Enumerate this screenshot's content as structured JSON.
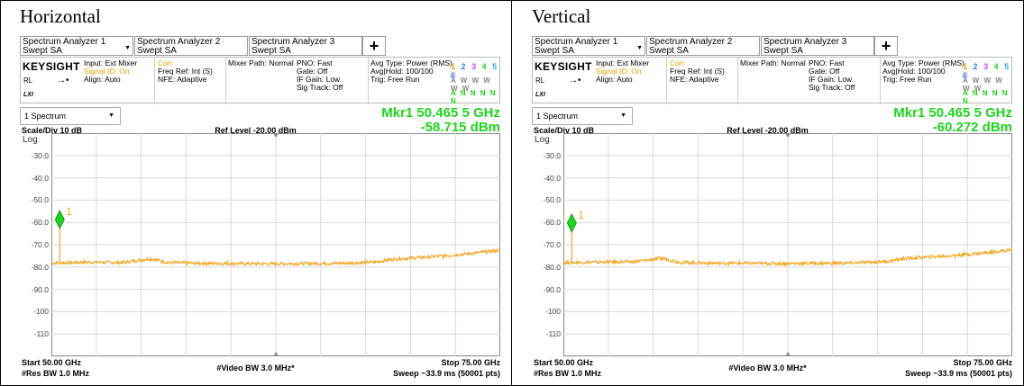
{
  "panels": [
    {
      "title": "Horizontal",
      "tabs": [
        {
          "line1": "Spectrum Analyzer 1",
          "line2": "Swept SA"
        },
        {
          "line1": "Spectrum Analyzer 2",
          "line2": "Swept SA"
        },
        {
          "line1": "Spectrum Analyzer 3",
          "line2": "Swept SA"
        }
      ],
      "add_tab": "+",
      "logo": "KEYSIGHT",
      "rl": "RL",
      "lxi": "LXI",
      "input": {
        "l1": "Input: Ext Mixer",
        "l2": "Signal ID: On",
        "l3": "Align: Auto"
      },
      "corr": {
        "l1": "Corr",
        "l2": "Freq Ref: Int (S)",
        "l3": "NFE: Adaptive"
      },
      "mixer": "Mixer Path: Normal",
      "pno": {
        "l1": "PNO: Fast",
        "l2": "Gate: Off",
        "l3": "IF Gain: Low",
        "l4": "Sig Track: Off"
      },
      "avg": {
        "l1": "Avg Type: Power (RMS)",
        "l2": "Avg|Hold: 100/100",
        "l3": "Trig: Free Run"
      },
      "trace_numbers": "1 2 3 4 5 6",
      "trace_types": "A W W W W W",
      "trace_dets": "A N N N N N",
      "spectrum_select": "1 Spectrum",
      "marker_freq": "Mkr1  50.465 5 GHz",
      "marker_amp": "-58.715 dBm",
      "scale_div": "Scale/Div 10 dB",
      "log_label": "Log",
      "ref_level": "Ref Level -20.00 dBm",
      "start": "Start 50.00 GHz",
      "res_bw": "#Res BW 1.0 MHz",
      "video_bw": "#Video BW 3.0 MHz*",
      "stop": "Stop 75.00 GHz",
      "sweep": "Sweep ~33.9 ms (50001 pts)",
      "marker_label": "1"
    },
    {
      "title": "Vertical",
      "tabs": [
        {
          "line1": "Spectrum Analyzer 1",
          "line2": "Swept SA"
        },
        {
          "line1": "Spectrum Analyzer 2",
          "line2": "Swept SA"
        },
        {
          "line1": "Spectrum Analyzer 3",
          "line2": "Swept SA"
        }
      ],
      "add_tab": "+",
      "logo": "KEYSIGHT",
      "rl": "RL",
      "lxi": "LXI",
      "input": {
        "l1": "Input: Ext Mixer",
        "l2": "Signal ID: On",
        "l3": "Align: Auto"
      },
      "corr": {
        "l1": "Corr",
        "l2": "Freq Ref: Int (S)",
        "l3": "NFE: Adaptive"
      },
      "mixer": "Mixer Path: Normal",
      "pno": {
        "l1": "PNO: Fast",
        "l2": "Gate: Off",
        "l3": "IF Gain: Low",
        "l4": "Sig Track: Off"
      },
      "avg": {
        "l1": "Avg Type: Power (RMS)",
        "l2": "Avg|Hold: 100/100",
        "l3": "Trig: Free Run"
      },
      "trace_numbers": "1 2 3 4 5 6",
      "trace_types": "A W W W W W",
      "trace_dets": "A N N N N N",
      "spectrum_select": "1 Spectrum",
      "marker_freq": "Mkr1  50.465 5 GHz",
      "marker_amp": "-60.272 dBm",
      "scale_div": "Scale/Div 10 dB",
      "log_label": "Log",
      "ref_level": "Ref Level -20.00 dBm",
      "start": "Start 50.00 GHz",
      "res_bw": "#Res BW 1.0 MHz",
      "video_bw": "#Video BW 3.0 MHz*",
      "stop": "Stop 75.00 GHz",
      "sweep": "Sweep ~33.9 ms (50001 pts)",
      "marker_label": "1"
    }
  ],
  "y_ticks": [
    "-30.0",
    "-40.0",
    "-50.0",
    "-60.0",
    "-70.0",
    "-80.0",
    "-90.0",
    "-100",
    "-110"
  ],
  "colors": {
    "trace": "#f5a623",
    "marker": "#1ed41e",
    "signal_id": "#e8a000",
    "trace_nums": [
      "#e8a000",
      "#2a7de1",
      "#d946ef",
      "#1ed41e",
      "#3aa0c8",
      "#2a7de1"
    ]
  },
  "chart_data": [
    {
      "type": "line",
      "title": "Horizontal",
      "xlabel": "",
      "ylabel": "",
      "xlim": [
        50.0,
        75.0
      ],
      "ylim": [
        -120,
        -20
      ],
      "series": [
        {
          "x": [
            50.0,
            52.0,
            54.0,
            55.5,
            56.5,
            58.0,
            62.0,
            66.0,
            68.0,
            69.0,
            71.0,
            73.0,
            75.0
          ],
          "y": [
            -78.2,
            -77.8,
            -78.0,
            -76.2,
            -78.0,
            -78.3,
            -78.5,
            -78.3,
            -77.8,
            -76.5,
            -75.5,
            -74.2,
            -72.5
          ]
        }
      ],
      "marker": {
        "x": 50.4655,
        "y": -58.715
      }
    },
    {
      "type": "line",
      "title": "Vertical",
      "xlabel": "",
      "ylabel": "",
      "xlim": [
        50.0,
        75.0
      ],
      "ylim": [
        -120,
        -20
      ],
      "series": [
        {
          "x": [
            50.0,
            52.0,
            54.0,
            55.5,
            56.5,
            58.0,
            62.0,
            66.0,
            68.0,
            69.0,
            71.0,
            73.0,
            75.0
          ],
          "y": [
            -78.0,
            -77.8,
            -77.6,
            -76.0,
            -77.9,
            -78.2,
            -78.4,
            -78.2,
            -77.5,
            -76.2,
            -75.2,
            -74.0,
            -72.3
          ]
        }
      ],
      "marker": {
        "x": 50.4655,
        "y": -60.272
      }
    }
  ]
}
